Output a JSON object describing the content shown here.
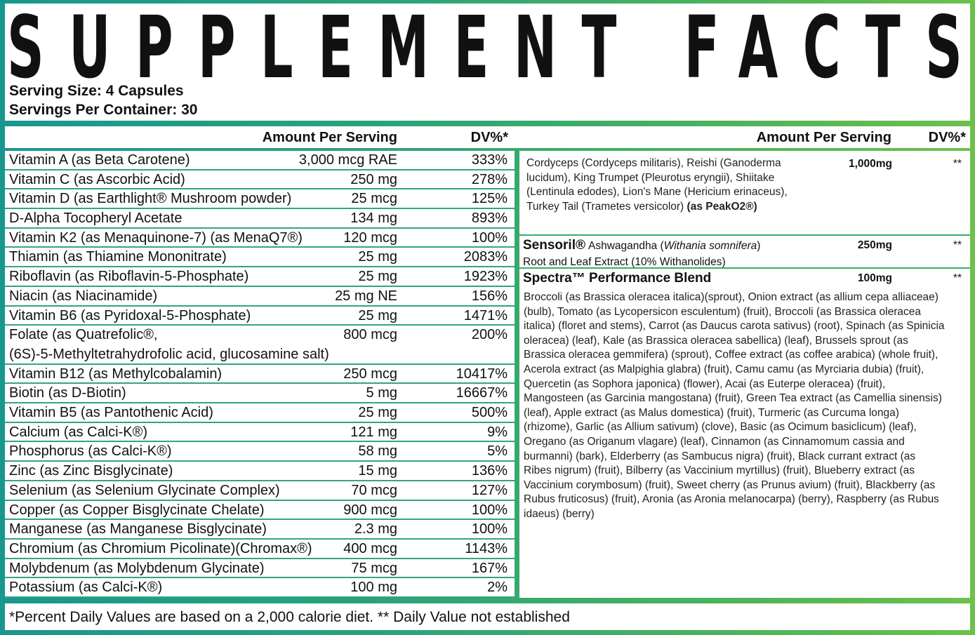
{
  "header": {
    "title": "SUPPLEMENT FACTS",
    "serving_size": "Serving Size: 4 Capsules",
    "servings_per_container": "Servings Per Container: 30"
  },
  "left_table": {
    "columns": [
      "Amount Per Serving",
      "DV%*"
    ],
    "rows": [
      {
        "name": "Vitamin A (as Beta Carotene)",
        "amount": "3,000 mcg RAE",
        "dv": "333%"
      },
      {
        "name": "Vitamin C (as Ascorbic Acid)",
        "amount": "250 mg",
        "dv": "278%"
      },
      {
        "name": "Vitamin D (as Earthlight® Mushroom powder)",
        "amount": "25 mcg",
        "dv": "125%"
      },
      {
        "name": "D-Alpha Tocopheryl Acetate",
        "amount": "134 mg",
        "dv": "893%"
      },
      {
        "name": "Vitamin K2 (as Menaquinone-7) (as MenaQ7®)",
        "amount": "120 mcg",
        "dv": "100%"
      },
      {
        "name": "Thiamin (as Thiamine Mononitrate)",
        "amount": "25 mg",
        "dv": "2083%"
      },
      {
        "name": "Riboflavin (as Riboflavin-5-Phosphate)",
        "amount": "25 mg",
        "dv": "1923%"
      },
      {
        "name": "Niacin (as Niacinamide)",
        "amount": "25 mg NE",
        "dv": "156%"
      },
      {
        "name": "Vitamin B6 (as Pyridoxal-5-Phosphate)",
        "amount": "25 mg",
        "dv": "1471%"
      },
      {
        "name": "Folate (as Quatrefolic®,",
        "name_cont": "(6S)-5-Methyltetrahydrofolic acid, glucosamine salt)",
        "amount": "800 mcg",
        "dv": "200%"
      },
      {
        "name": "Vitamin B12 (as Methylcobalamin)",
        "amount": "250 mcg",
        "dv": "10417%"
      },
      {
        "name": "Biotin (as D-Biotin)",
        "amount": "5 mg",
        "dv": "16667%"
      },
      {
        "name": "Vitamin B5 (as Pantothenic Acid)",
        "amount": "25 mg",
        "dv": "500%"
      },
      {
        "name": "Calcium (as Calci-K®)",
        "amount": "121 mg",
        "dv": "9%"
      },
      {
        "name": "Phosphorus (as Calci-K®)",
        "amount": "58 mg",
        "dv": "5%"
      },
      {
        "name": "Zinc (as Zinc Bisglycinate)",
        "amount": "15 mg",
        "dv": "136%"
      },
      {
        "name": "Selenium (as Selenium Glycinate Complex)",
        "amount": "70 mcg",
        "dv": "127%"
      },
      {
        "name": "Copper (as Copper Bisglycinate Chelate)",
        "amount": "900 mcg",
        "dv": "100%"
      },
      {
        "name": "Manganese (as Manganese Bisglycinate)",
        "amount": "2.3 mg",
        "dv": "100%"
      },
      {
        "name": "Chromium (as Chromium Picolinate)(Chromax®)",
        "amount": "400 mcg",
        "dv": "1143%"
      },
      {
        "name": "Molybdenum (as Molybdenum Glycinate)",
        "amount": "75 mcg",
        "dv": "167%"
      },
      {
        "name": "Potassium (as Calci-K®)",
        "amount": "100 mg",
        "dv": "2%"
      }
    ]
  },
  "right_table": {
    "columns": [
      "Amount Per Serving",
      "DV%*"
    ],
    "rows": [
      {
        "ingredients": "Cordyceps (Cordyceps militaris), Reishi (Ganoderma lucidum), King Trumpet (Pleurotus eryngii), Shiitake (Lentinula edodes), Lion's Mane (Hericium erinaceus), Turkey Tail (Trametes versicolor)",
        "source": "(as PeakO2®)",
        "amount": "1,000mg",
        "dv": "**"
      },
      {
        "brand": "Sensoril®",
        "name": "Ashwagandha (",
        "latin": "Withania somnifera",
        "name_end": ")",
        "detail": "Root and Leaf Extract (10% Withanolides)",
        "amount": "250mg",
        "dv": "**"
      },
      {
        "name": "Spectra™ Performance Blend",
        "amount": "100mg",
        "dv": "**",
        "ingredients": "Broccoli (as Brassica oleracea italica)(sprout), Onion extract (as allium cepa alliaceae) (bulb), Tomato (as Lycopersicon esculentum) (fruit), Broccoli (as Brassica oleracea italica) (floret and stems), Carrot (as Daucus carota sativus) (root), Spinach (as Spinicia oleracea) (leaf), Kale (as Brassica oleracea sabellica) (leaf), Brussels sprout (as Brassica oleracea gemmifera) (sprout), Coffee extract (as coffee arabica) (whole fruit), Acerola extract (as Malpighia glabra) (fruit), Camu camu (as Myrciaria dubia) (fruit), Quercetin (as Sophora japonica) (flower), Acai (as Euterpe oleracea) (fruit), Mangosteen (as Garcinia mangostana) (fruit), Green Tea extract (as Camellia sinensis) (leaf), Apple extract (as Malus domestica) (fruit), Turmeric (as Curcuma longa) (rhizome), Garlic (as Allium sativum) (clove), Basic (as Ocimum basiclicum) (leaf), Oregano (as Origanum vlagare) (leaf), Cinnamon (as Cinnamomum cassia and burmanni) (bark), Elderberry (as Sambucus nigra) (fruit), Black currant extract (as Ribes nigrum) (fruit), Bilberry (as Vaccinium myrtillus) (fruit), Blueberry extract (as Vaccinium corymbosum) (fruit), Sweet cherry (as Prunus avium) (fruit), Blackberry (as Rubus fruticosus) (fruit), Aronia (as Aronia melanocarpa) (berry), Raspberry (as Rubus idaeus) (berry)"
      }
    ]
  },
  "footnote": "*Percent Daily Values are based on a 2,000 calorie diet. ** Daily Value not established"
}
